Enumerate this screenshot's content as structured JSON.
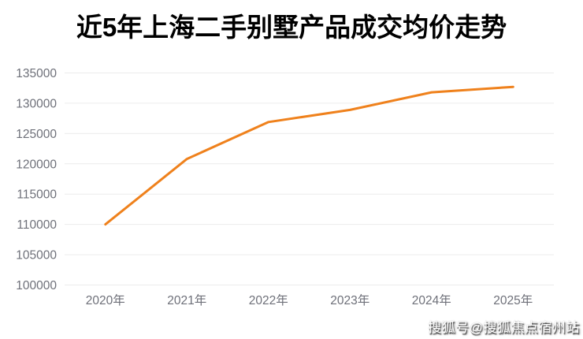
{
  "title": "近5年上海二手别墅产品成交均价走势",
  "watermark": "搜狐号@搜狐焦点宿州站",
  "colors": {
    "line": "#ef811c",
    "grid": "#ececec",
    "axis_label": "#6e7079",
    "title": "#000000",
    "background": "#ffffff"
  },
  "chart_data": {
    "type": "line",
    "title": "近5年上海二手别墅产品成交均价走势",
    "categories": [
      "2020年",
      "2021年",
      "2022年",
      "2023年",
      "2024年",
      "2025年"
    ],
    "values": [
      110000,
      120800,
      126900,
      128900,
      131800,
      132700
    ],
    "xlabel": "",
    "ylabel": "",
    "ylim": [
      100000,
      135000
    ],
    "yticks": [
      100000,
      105000,
      110000,
      115000,
      120000,
      125000,
      130000,
      135000
    ],
    "grid": true,
    "legend_position": "none",
    "line_width": 3,
    "markers": false
  }
}
